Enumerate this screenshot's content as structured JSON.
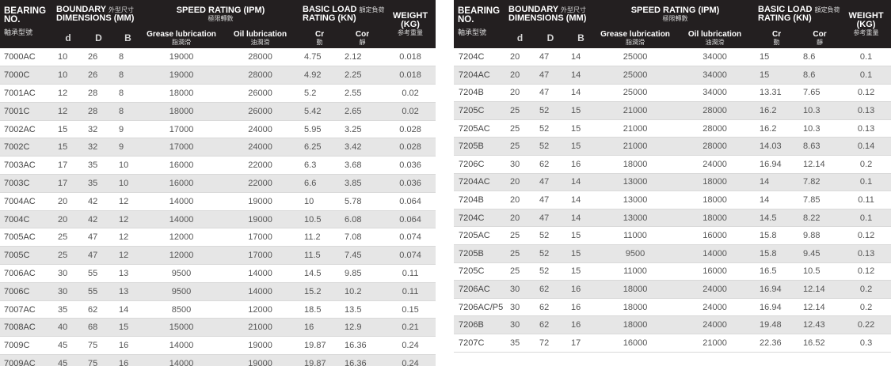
{
  "headers": {
    "bearing_no": "BEARING NO.",
    "bearing_no_cn": "軸承型號",
    "boundary": "BOUNDARY",
    "boundary_cn": "外型尺寸",
    "dimensions": "DIMENSIONS (MM)",
    "speed": "SPEED RATING (IPM)",
    "speed_cn": "極限轉數",
    "load": "BASIC LOAD",
    "load_cn": "額定負荷",
    "rating": "RATING (KN)",
    "weight": "WEIGHT (KG)",
    "weight_cn": "参考重量",
    "d": "d",
    "D": "D",
    "B": "B",
    "grease": "Grease lubrication",
    "grease_cn": "脂潤滑",
    "oil": "Oil lubrication",
    "oil_cn": "油潤滑",
    "cr": "Cr",
    "cr_cn": "動",
    "cor": "Cor",
    "cor_cn": "靜"
  },
  "left_rows": [
    [
      "7000AC",
      "10",
      "26",
      "8",
      "19000",
      "28000",
      "4.75",
      "2.12",
      "0.018"
    ],
    [
      "7000C",
      "10",
      "26",
      "8",
      "19000",
      "28000",
      "4.92",
      "2.25",
      "0.018"
    ],
    [
      "7001AC",
      "12",
      "28",
      "8",
      "18000",
      "26000",
      "5.2",
      "2.55",
      "0.02"
    ],
    [
      "7001C",
      "12",
      "28",
      "8",
      "18000",
      "26000",
      "5.42",
      "2.65",
      "0.02"
    ],
    [
      "7002AC",
      "15",
      "32",
      "9",
      "17000",
      "24000",
      "5.95",
      "3.25",
      "0.028"
    ],
    [
      "7002C",
      "15",
      "32",
      "9",
      "17000",
      "24000",
      "6.25",
      "3.42",
      "0.028"
    ],
    [
      "7003AC",
      "17",
      "35",
      "10",
      "16000",
      "22000",
      "6.3",
      "3.68",
      "0.036"
    ],
    [
      "7003C",
      "17",
      "35",
      "10",
      "16000",
      "22000",
      "6.6",
      "3.85",
      "0.036"
    ],
    [
      "7004AC",
      "20",
      "42",
      "12",
      "14000",
      "19000",
      "10",
      "5.78",
      "0.064"
    ],
    [
      "7004C",
      "20",
      "42",
      "12",
      "14000",
      "19000",
      "10.5",
      "6.08",
      "0.064"
    ],
    [
      "7005AC",
      "25",
      "47",
      "12",
      "12000",
      "17000",
      "11.2",
      "7.08",
      "0.074"
    ],
    [
      "7005C",
      "25",
      "47",
      "12",
      "12000",
      "17000",
      "11.5",
      "7.45",
      "0.074"
    ],
    [
      "7006AC",
      "30",
      "55",
      "13",
      "9500",
      "14000",
      "14.5",
      "9.85",
      "0.11"
    ],
    [
      "7006C",
      "30",
      "55",
      "13",
      "9500",
      "14000",
      "15.2",
      "10.2",
      "0.11"
    ],
    [
      "7007AC",
      "35",
      "62",
      "14",
      "8500",
      "12000",
      "18.5",
      "13.5",
      "0.15"
    ],
    [
      "7008AC",
      "40",
      "68",
      "15",
      "15000",
      "21000",
      "16",
      "12.9",
      "0.21"
    ],
    [
      "7009C",
      "45",
      "75",
      "16",
      "14000",
      "19000",
      "19.87",
      "16.36",
      "0.24"
    ],
    [
      "7009AC",
      "45",
      "75",
      "16",
      "14000",
      "19000",
      "19.87",
      "16.36",
      "0.24"
    ]
  ],
  "right_rows": [
    [
      "7204C",
      "20",
      "47",
      "14",
      "25000",
      "34000",
      "15",
      "8.6",
      "0.1"
    ],
    [
      "7204AC",
      "20",
      "47",
      "14",
      "25000",
      "34000",
      "15",
      "8.6",
      "0.1"
    ],
    [
      "7204B",
      "20",
      "47",
      "14",
      "25000",
      "34000",
      "13.31",
      "7.65",
      "0.12"
    ],
    [
      "7205C",
      "25",
      "52",
      "15",
      "21000",
      "28000",
      "16.2",
      "10.3",
      "0.13"
    ],
    [
      "7205AC",
      "25",
      "52",
      "15",
      "21000",
      "28000",
      "16.2",
      "10.3",
      "0.13"
    ],
    [
      "7205B",
      "25",
      "52",
      "15",
      "21000",
      "28000",
      "14.03",
      "8.63",
      "0.14"
    ],
    [
      "7206C",
      "30",
      "62",
      "16",
      "18000",
      "24000",
      "16.94",
      "12.14",
      "0.2"
    ],
    [
      "7204AC",
      "20",
      "47",
      "14",
      "13000",
      "18000",
      "14",
      "7.82",
      "0.1"
    ],
    [
      "7204B",
      "20",
      "47",
      "14",
      "13000",
      "18000",
      "14",
      "7.85",
      "0.11"
    ],
    [
      "7204C",
      "20",
      "47",
      "14",
      "13000",
      "18000",
      "14.5",
      "8.22",
      "0.1"
    ],
    [
      "7205AC",
      "25",
      "52",
      "15",
      "11000",
      "16000",
      "15.8",
      "9.88",
      "0.12"
    ],
    [
      "7205B",
      "25",
      "52",
      "15",
      "9500",
      "14000",
      "15.8",
      "9.45",
      "0.13"
    ],
    [
      "7205C",
      "25",
      "52",
      "15",
      "11000",
      "16000",
      "16.5",
      "10.5",
      "0.12"
    ],
    [
      "7206AC",
      "30",
      "62",
      "16",
      "18000",
      "24000",
      "16.94",
      "12.14",
      "0.2"
    ],
    [
      "7206AC/P5",
      "30",
      "62",
      "16",
      "18000",
      "24000",
      "16.94",
      "12.14",
      "0.2"
    ],
    [
      "7206B",
      "30",
      "62",
      "16",
      "18000",
      "24000",
      "19.48",
      "12.43",
      "0.22"
    ],
    [
      "7207C",
      "35",
      "72",
      "17",
      "16000",
      "21000",
      "22.36",
      "16.52",
      "0.3"
    ]
  ]
}
